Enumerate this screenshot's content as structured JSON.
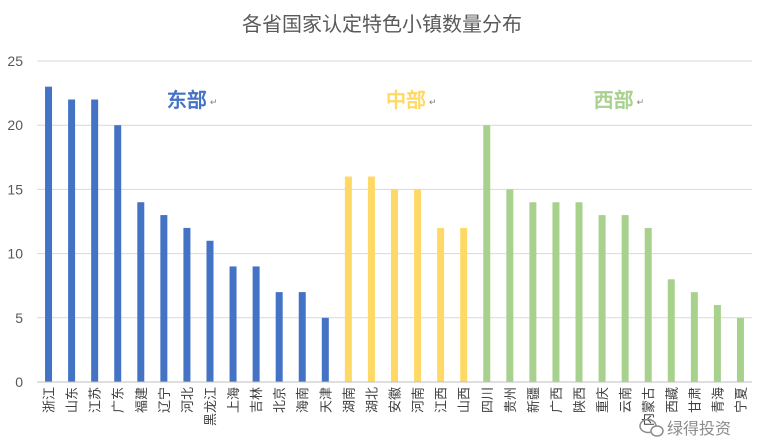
{
  "chart_data": {
    "type": "bar",
    "title": "各省国家认定特色小镇数量分布",
    "xlabel": "",
    "ylabel": "",
    "ylim": [
      0,
      25
    ],
    "yticks": [
      0,
      5,
      10,
      15,
      20,
      25
    ],
    "grid": true,
    "legend": "none",
    "categories": [
      "浙江",
      "山东",
      "江苏",
      "广东",
      "福建",
      "辽宁",
      "河北",
      "黑龙江",
      "上海",
      "吉林",
      "北京",
      "海南",
      "天津",
      "湖南",
      "湖北",
      "安徽",
      "河南",
      "江西",
      "山西",
      "四川",
      "贵州",
      "新疆",
      "广西",
      "陕西",
      "重庆",
      "云南",
      "内蒙古",
      "西藏",
      "甘肃",
      "青海",
      "宁夏"
    ],
    "values": [
      23,
      22,
      22,
      20,
      14,
      13,
      12,
      11,
      9,
      9,
      7,
      7,
      5,
      16,
      16,
      15,
      15,
      12,
      12,
      20,
      15,
      14,
      14,
      14,
      13,
      13,
      12,
      8,
      7,
      6,
      5
    ],
    "groups": [
      {
        "label": "东部",
        "color": "#4472C4",
        "start": 0,
        "end": 12
      },
      {
        "label": "中部",
        "color": "#FFD966",
        "start": 13,
        "end": 18
      },
      {
        "label": "西部",
        "color": "#A9D18E",
        "start": 19,
        "end": 30
      }
    ]
  },
  "watermark": "绿得投资",
  "watermark_icon": "wechat-icon"
}
